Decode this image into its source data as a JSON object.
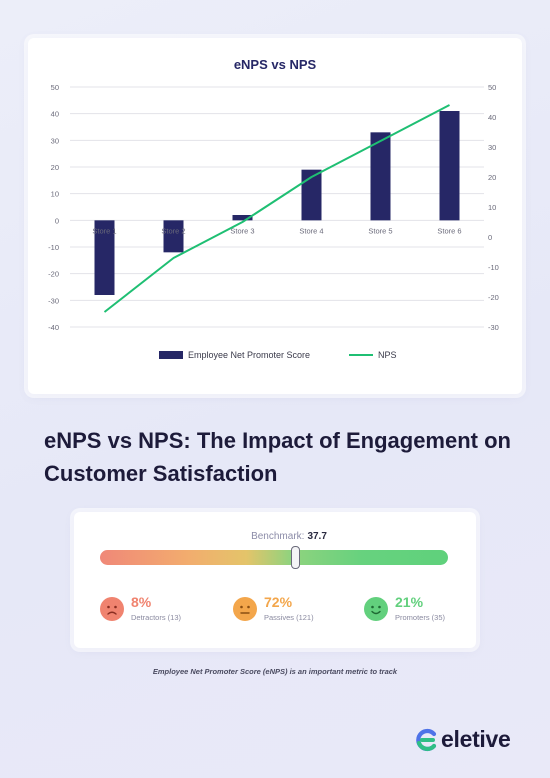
{
  "chart_data": {
    "type": "bar+line",
    "title": "eNPS vs NPS",
    "categories": [
      "Store 1",
      "Store 2",
      "Store 3",
      "Store 4",
      "Store 5",
      "Store 6"
    ],
    "series": [
      {
        "name": "Employee Net Promoter Score",
        "type": "bar",
        "axis": "left",
        "color": "#262766",
        "values": [
          -28,
          -12,
          2,
          19,
          33,
          41
        ]
      },
      {
        "name": "NPS",
        "type": "line",
        "axis": "right",
        "color": "#1fbf73",
        "values": [
          -25,
          -7,
          5,
          20,
          32,
          44
        ]
      }
    ],
    "y_left": {
      "min": -40,
      "max": 50,
      "ticks": [
        50,
        40,
        30,
        20,
        10,
        0,
        -10,
        -20,
        -30,
        -40
      ]
    },
    "y_right": {
      "min": -30,
      "max": 50,
      "ticks": [
        50,
        40,
        30,
        20,
        10,
        0,
        -10,
        -20,
        -30
      ]
    },
    "grid": true,
    "legend": "bottom"
  },
  "headline": "eNPS vs NPS: The Impact of Engagement on Customer Satisfaction",
  "benchmark": {
    "label": "Benchmark:",
    "value": "37.7",
    "handle_fraction": 0.56
  },
  "stats": [
    {
      "pct": "8%",
      "label": "Detractors (13)",
      "color": "#f0836f",
      "face": "sad-face-icon"
    },
    {
      "pct": "72%",
      "label": "Passives (121)",
      "color": "#f3a64b",
      "face": "neutral-face-icon"
    },
    {
      "pct": "21%",
      "label": "Promoters (35)",
      "color": "#62d07d",
      "face": "happy-face-icon"
    }
  ],
  "caption": "Employee Net Promoter Score (eNPS) is an important metric to track",
  "brand": {
    "name": "eletive",
    "accent": "#2fbf86",
    "accent2": "#4e73e8"
  }
}
